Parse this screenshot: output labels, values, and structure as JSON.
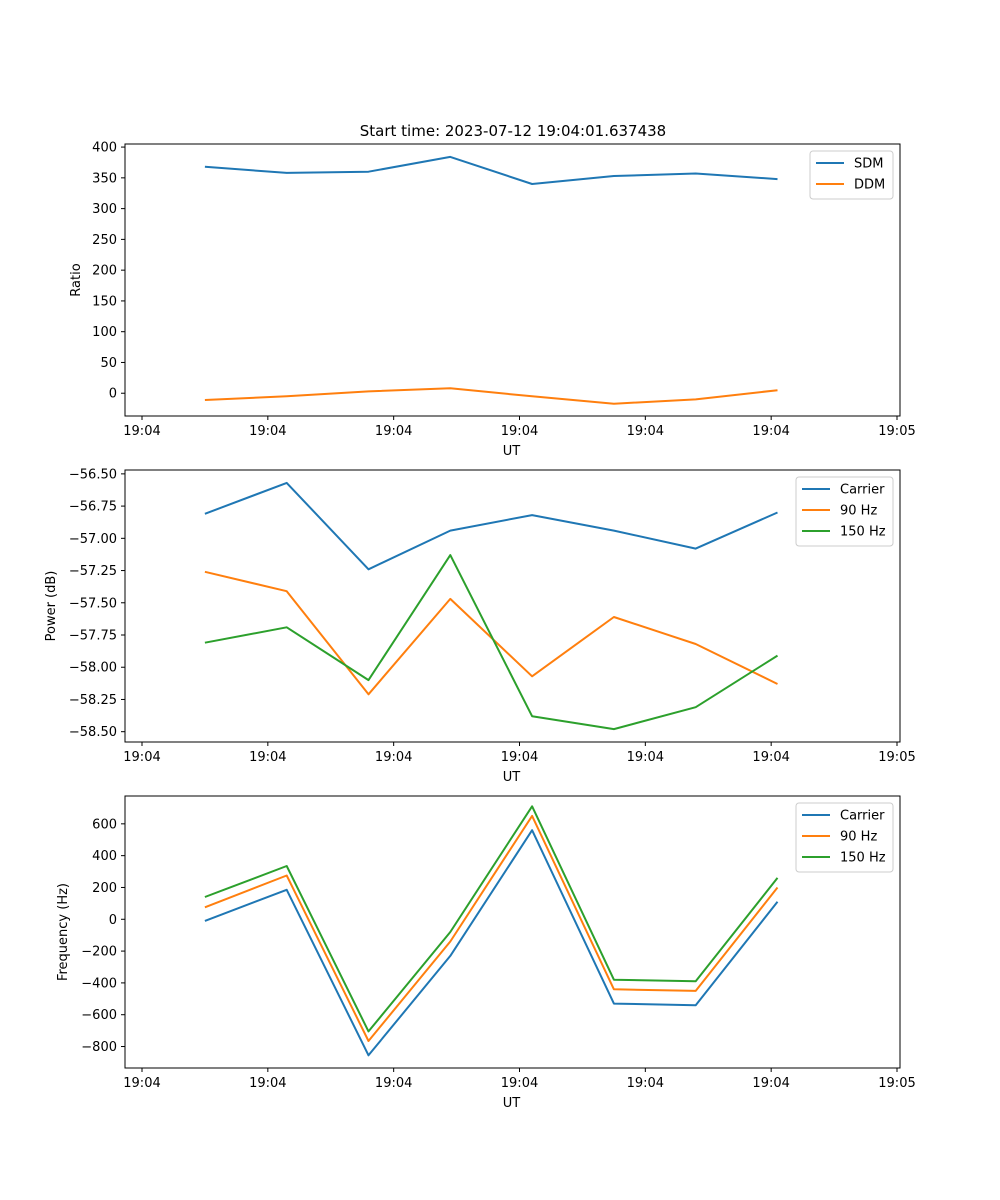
{
  "title": "Start time: 2023-07-12 19:04:01.637438",
  "colors": {
    "c0": "#1f77b4",
    "c1": "#ff7f0e",
    "c2": "#2ca02c"
  },
  "chart_data": [
    {
      "type": "line",
      "title": "Start time: 2023-07-12 19:04:01.637438",
      "xlabel": "UT",
      "ylabel": "Ratio",
      "x": [
        0.5,
        1.15,
        1.8,
        2.45,
        3.1,
        3.75,
        4.4,
        5.05
      ],
      "xlim": [
        -0.0,
        6.0
      ],
      "xticks": [
        0,
        1,
        2,
        3,
        4,
        5,
        6
      ],
      "xtick_labels": [
        "19:04",
        "19:04",
        "19:04",
        "19:04",
        "19:04",
        "19:04",
        "19:05"
      ],
      "ylim": [
        -37,
        405
      ],
      "yticks": [
        0,
        50,
        100,
        150,
        200,
        250,
        300,
        350,
        400
      ],
      "ytick_labels": [
        "0",
        "50",
        "100",
        "150",
        "200",
        "250",
        "300",
        "350",
        "400"
      ],
      "legend_position": "top-right",
      "series": [
        {
          "name": "SDM",
          "color": "#1f77b4",
          "values": [
            368,
            358,
            360,
            384,
            340,
            353,
            357,
            348
          ]
        },
        {
          "name": "DDM",
          "color": "#ff7f0e",
          "values": [
            -11,
            -5,
            3,
            8,
            -5,
            -17,
            -10,
            5
          ]
        }
      ]
    },
    {
      "type": "line",
      "title": "",
      "xlabel": "UT",
      "ylabel": "Power (dB)",
      "x": [
        0.5,
        1.15,
        1.8,
        2.45,
        3.1,
        3.75,
        4.4,
        5.05
      ],
      "xlim": [
        -0.0,
        6.0
      ],
      "xticks": [
        0,
        1,
        2,
        3,
        4,
        5,
        6
      ],
      "xtick_labels": [
        "19:04",
        "19:04",
        "19:04",
        "19:04",
        "19:04",
        "19:04",
        "19:05"
      ],
      "ylim": [
        -58.58,
        -56.47
      ],
      "yticks": [
        -56.5,
        -56.75,
        -57.0,
        -57.25,
        -57.5,
        -57.75,
        -58.0,
        -58.25,
        -58.5
      ],
      "ytick_labels": [
        "−56.50",
        "−56.75",
        "−57.00",
        "−57.25",
        "−57.50",
        "−57.75",
        "−58.00",
        "−58.25",
        "−58.50"
      ],
      "legend_position": "top-right",
      "series": [
        {
          "name": "Carrier",
          "color": "#1f77b4",
          "values": [
            -56.81,
            -56.57,
            -57.24,
            -56.94,
            -56.82,
            -56.94,
            -57.08,
            -56.8
          ]
        },
        {
          "name": "90 Hz",
          "color": "#ff7f0e",
          "values": [
            -57.26,
            -57.41,
            -58.21,
            -57.47,
            -58.07,
            -57.61,
            -57.82,
            -58.13
          ]
        },
        {
          "name": "150 Hz",
          "color": "#2ca02c",
          "values": [
            -57.81,
            -57.69,
            -58.1,
            -57.13,
            -58.38,
            -58.48,
            -58.31,
            -57.91
          ]
        }
      ]
    },
    {
      "type": "line",
      "title": "",
      "xlabel": "UT",
      "ylabel": "Frequency (Hz)",
      "x": [
        0.5,
        1.15,
        1.8,
        2.45,
        3.1,
        3.75,
        4.4,
        5.05
      ],
      "xlim": [
        -0.0,
        6.0
      ],
      "xticks": [
        0,
        1,
        2,
        3,
        4,
        5,
        6
      ],
      "xtick_labels": [
        "19:04",
        "19:04",
        "19:04",
        "19:04",
        "19:04",
        "19:04",
        "19:05"
      ],
      "ylim": [
        -935,
        775
      ],
      "yticks": [
        -800,
        -600,
        -400,
        -200,
        0,
        200,
        400,
        600
      ],
      "ytick_labels": [
        "−800",
        "−600",
        "−400",
        "−200",
        "0",
        "200",
        "400",
        "600"
      ],
      "legend_position": "top-right",
      "series": [
        {
          "name": "Carrier",
          "color": "#1f77b4",
          "values": [
            -10,
            185,
            -855,
            -230,
            560,
            -530,
            -540,
            110
          ]
        },
        {
          "name": "90 Hz",
          "color": "#ff7f0e",
          "values": [
            75,
            275,
            -765,
            -140,
            650,
            -440,
            -450,
            200
          ]
        },
        {
          "name": "150 Hz",
          "color": "#2ca02c",
          "values": [
            140,
            335,
            -705,
            -80,
            710,
            -380,
            -390,
            260
          ]
        }
      ]
    }
  ]
}
